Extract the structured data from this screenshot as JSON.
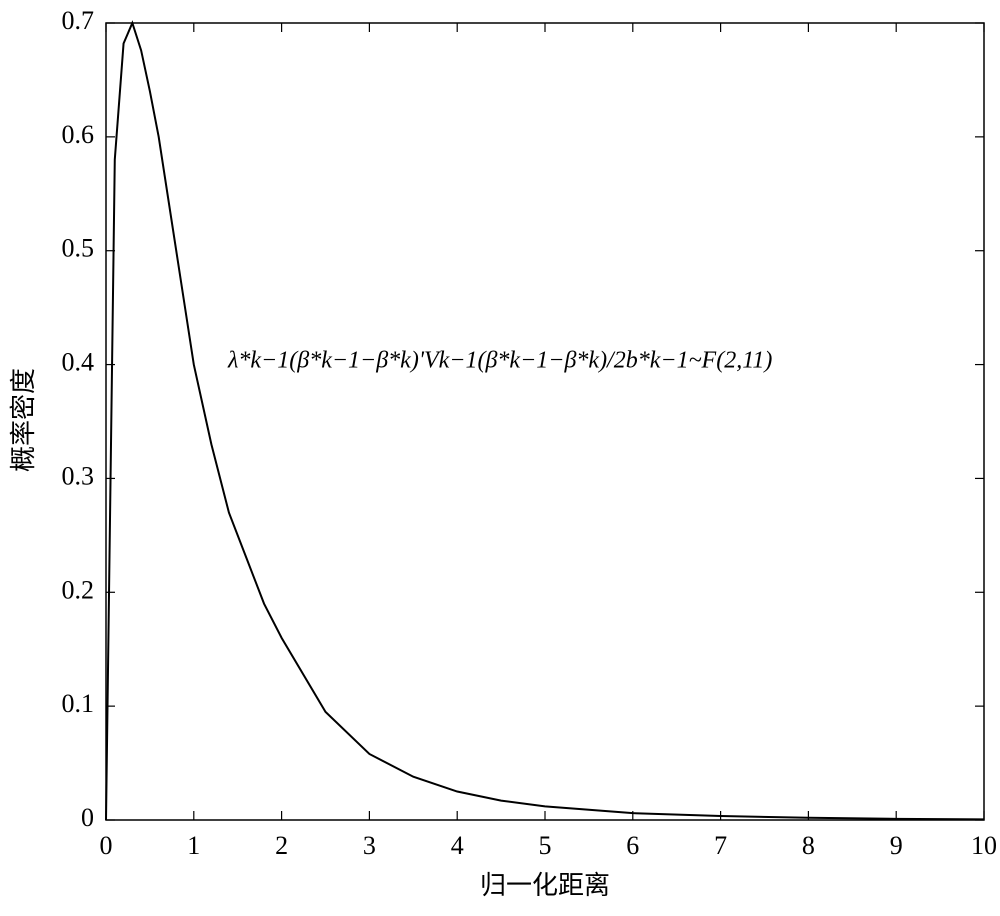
{
  "chart_data": {
    "type": "line",
    "xlabel": "归一化距离",
    "ylabel": "概率密度",
    "annotation": "λ*k−1(β*k−1−β*k)'Vk−1(β*k−1−β*k)/2b*k−1~F(2,11)",
    "x": [
      0,
      0.1,
      0.2,
      0.3,
      0.4,
      0.5,
      0.6,
      0.7,
      0.8,
      0.9,
      1.0,
      1.2,
      1.4,
      1.6,
      1.8,
      2.0,
      2.5,
      3.0,
      3.5,
      4.0,
      4.5,
      5.0,
      6.0,
      7.0,
      8.0,
      9.0,
      10.0
    ],
    "series": [
      {
        "color": "#000000",
        "values": [
          0,
          0.58,
          0.682,
          0.7,
          0.676,
          0.64,
          0.6,
          0.55,
          0.5,
          0.45,
          0.4,
          0.33,
          0.27,
          0.23,
          0.19,
          0.16,
          0.095,
          0.058,
          0.038,
          0.025,
          0.017,
          0.012,
          0.006,
          0.0035,
          0.002,
          0.001,
          0.0006
        ]
      }
    ],
    "xlim": [
      0,
      10
    ],
    "xticks": [
      0,
      1,
      2,
      3,
      4,
      5,
      6,
      7,
      8,
      9,
      10
    ],
    "ylim": [
      0,
      0.7
    ],
    "yticks": [
      0,
      0.1,
      0.2,
      0.3,
      0.4,
      0.5,
      0.6,
      0.7
    ],
    "grid": false
  }
}
